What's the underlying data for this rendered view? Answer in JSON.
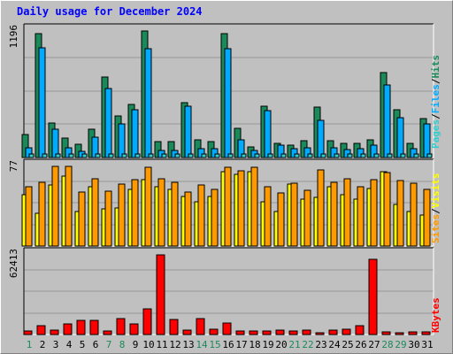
{
  "title": "Daily usage for December 2024",
  "colors": {
    "pages": "#1b8a5a",
    "files": "#00aaff",
    "hits": "#33cccc",
    "visits": "#ffff00",
    "sites": "#ff9900",
    "kbytes": "#ff0000",
    "weekend_label": "#1b8a5a",
    "weekday_label": "#0000ff"
  },
  "chart_data": [
    {
      "type": "bar",
      "panel": "hits-files-pages",
      "max_label": "1196",
      "ylim": [
        0,
        1196
      ],
      "legend_order": [
        "Pages",
        "/",
        "Files",
        "/",
        "Hits"
      ],
      "series": [
        {
          "name": "Hits",
          "values": [
            215,
            1174,
            330,
            180,
            125,
            265,
            765,
            395,
            505,
            1196,
            150,
            150,
            520,
            165,
            150,
            1174,
            280,
            100,
            485,
            135,
            115,
            155,
            475,
            160,
            130,
            135,
            170,
            800,
            450,
            130,
            365
          ]
        },
        {
          "name": "Files",
          "values": [
            95,
            1040,
            270,
            95,
            55,
            190,
            655,
            315,
            455,
            1032,
            70,
            70,
            485,
            85,
            85,
            1032,
            170,
            70,
            445,
            115,
            85,
            90,
            355,
            95,
            75,
            80,
            120,
            685,
            375,
            85,
            315
          ]
        },
        {
          "name": "Pages",
          "values": [
            30,
            30,
            30,
            30,
            30,
            30,
            30,
            30,
            30,
            30,
            30,
            30,
            30,
            30,
            30,
            30,
            30,
            30,
            30,
            30,
            30,
            30,
            30,
            30,
            30,
            30,
            30,
            30,
            30,
            30,
            30
          ]
        }
      ]
    },
    {
      "type": "bar",
      "panel": "visits-sites",
      "max_label": "77",
      "ylim": [
        0,
        77
      ],
      "legend_order": [
        "Sites",
        "/",
        "Visits"
      ],
      "series": [
        {
          "name": "Visits",
          "values": [
            50,
            32,
            59,
            68,
            33,
            57,
            36,
            37,
            55,
            64,
            57,
            55,
            48,
            43,
            48,
            72,
            69,
            72,
            43,
            33,
            60,
            45,
            47,
            57,
            50,
            45,
            56,
            72,
            40,
            33,
            30
          ]
        },
        {
          "name": "Sites",
          "values": [
            57,
            62,
            77,
            77,
            52,
            65,
            53,
            60,
            64,
            76,
            65,
            62,
            52,
            59,
            55,
            76,
            73,
            76,
            57,
            51,
            61,
            54,
            74,
            62,
            65,
            57,
            64,
            71,
            63,
            61,
            55
          ]
        }
      ]
    },
    {
      "type": "bar",
      "panel": "kbytes",
      "max_label": "62413",
      "ylim": [
        0,
        62413
      ],
      "legend": "KBytes",
      "series": [
        {
          "name": "KBytes",
          "values": [
            2600,
            7000,
            3800,
            8300,
            10800,
            11200,
            2700,
            12400,
            8600,
            20200,
            62413,
            11500,
            3400,
            12400,
            4100,
            8800,
            2700,
            2800,
            2700,
            3400,
            2500,
            3500,
            1300,
            3800,
            4300,
            6700,
            58900,
            1900,
            1700,
            1900,
            2000
          ]
        }
      ]
    }
  ],
  "days": [
    "1",
    "2",
    "3",
    "4",
    "5",
    "6",
    "7",
    "8",
    "9",
    "10",
    "11",
    "12",
    "13",
    "14",
    "15",
    "16",
    "17",
    "18",
    "19",
    "20",
    "21",
    "22",
    "23",
    "24",
    "25",
    "26",
    "27",
    "28",
    "29",
    "30",
    "31"
  ],
  "weekend_days": [
    1,
    7,
    8,
    14,
    15,
    21,
    22,
    28,
    29
  ]
}
